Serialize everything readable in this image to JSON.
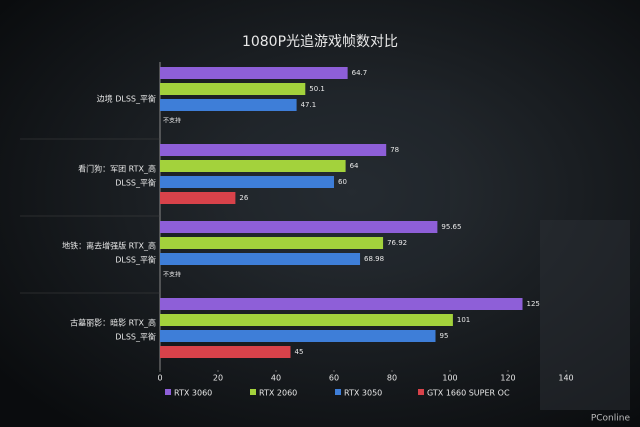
{
  "chart_data": {
    "type": "bar",
    "orientation": "horizontal",
    "title": "1080P光追游戏帧数对比",
    "categories": [
      [
        "边境 DLSS_平衡"
      ],
      [
        "看门狗：军团 RTX_高",
        "DLSS_平衡"
      ],
      [
        "地铁：离去增强版 RTX_高",
        "DLSS_平衡"
      ],
      [
        "古墓丽影：暗影 RTX_高",
        "DLSS_平衡"
      ]
    ],
    "series": [
      {
        "name": "RTX 3060",
        "color": "#8e5fd8",
        "values": [
          64.7,
          78,
          95.65,
          125
        ]
      },
      {
        "name": "RTX 2060",
        "color": "#a3d23c",
        "values": [
          50.1,
          64,
          76.92,
          101
        ]
      },
      {
        "name": "RTX 3050",
        "color": "#3e7ed8",
        "values": [
          47.1,
          60,
          68.98,
          95
        ]
      },
      {
        "name": "GTX 1660 SUPER OC",
        "color": "#d8424a",
        "values": [
          null,
          26,
          null,
          45
        ],
        "value_labels": [
          "不支持",
          null,
          "不支持",
          null
        ]
      }
    ],
    "xlim": [
      0,
      140
    ],
    "xticks": [
      0,
      20,
      40,
      60,
      80,
      100,
      120,
      140
    ],
    "legend": "bottom",
    "watermark": "PConline"
  }
}
